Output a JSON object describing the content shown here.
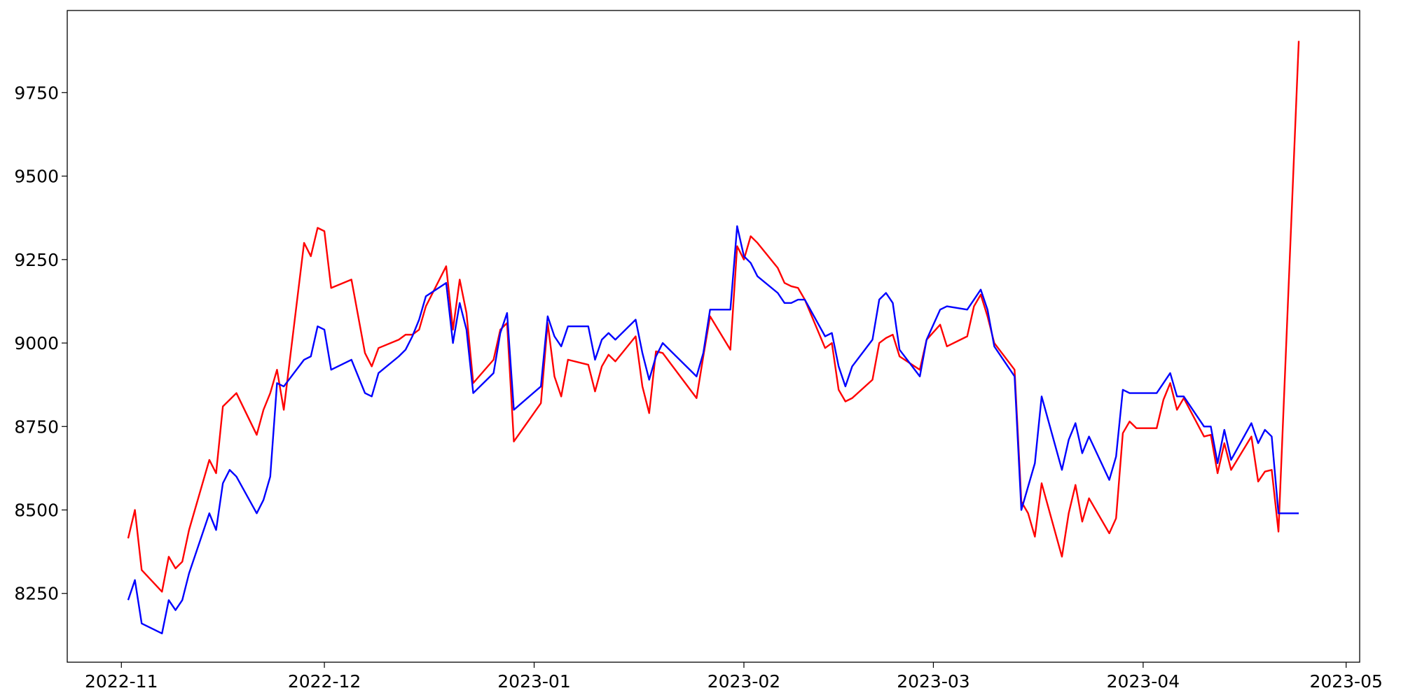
{
  "chart_data": {
    "type": "line",
    "x": [
      "2022-11-02",
      "2022-11-03",
      "2022-11-04",
      "2022-11-07",
      "2022-11-08",
      "2022-11-09",
      "2022-11-10",
      "2022-11-11",
      "2022-11-14",
      "2022-11-15",
      "2022-11-16",
      "2022-11-17",
      "2022-11-18",
      "2022-11-21",
      "2022-11-22",
      "2022-11-23",
      "2022-11-24",
      "2022-11-25",
      "2022-11-28",
      "2022-11-29",
      "2022-11-30",
      "2022-12-01",
      "2022-12-02",
      "2022-12-05",
      "2022-12-07",
      "2022-12-08",
      "2022-12-09",
      "2022-12-12",
      "2022-12-13",
      "2022-12-14",
      "2022-12-15",
      "2022-12-16",
      "2022-12-19",
      "2022-12-20",
      "2022-12-21",
      "2022-12-22",
      "2022-12-23",
      "2022-12-26",
      "2022-12-27",
      "2022-12-28",
      "2022-12-29",
      "2023-01-02",
      "2023-01-03",
      "2023-01-04",
      "2023-01-05",
      "2023-01-06",
      "2023-01-09",
      "2023-01-10",
      "2023-01-11",
      "2023-01-12",
      "2023-01-13",
      "2023-01-16",
      "2023-01-17",
      "2023-01-18",
      "2023-01-19",
      "2023-01-20",
      "2023-01-25",
      "2023-01-26",
      "2023-01-27",
      "2023-01-30",
      "2023-01-31",
      "2023-02-01",
      "2023-02-02",
      "2023-02-03",
      "2023-02-06",
      "2023-02-07",
      "2023-02-08",
      "2023-02-09",
      "2023-02-10",
      "2023-02-13",
      "2023-02-14",
      "2023-02-15",
      "2023-02-16",
      "2023-02-17",
      "2023-02-20",
      "2023-02-21",
      "2023-02-22",
      "2023-02-23",
      "2023-02-24",
      "2023-02-27",
      "2023-02-28",
      "2023-03-02",
      "2023-03-03",
      "2023-03-06",
      "2023-03-07",
      "2023-03-08",
      "2023-03-09",
      "2023-03-10",
      "2023-03-13",
      "2023-03-14",
      "2023-03-15",
      "2023-03-16",
      "2023-03-17",
      "2023-03-20",
      "2023-03-21",
      "2023-03-22",
      "2023-03-23",
      "2023-03-24",
      "2023-03-27",
      "2023-03-28",
      "2023-03-29",
      "2023-03-30",
      "2023-03-31",
      "2023-04-03",
      "2023-04-04",
      "2023-04-05",
      "2023-04-06",
      "2023-04-07",
      "2023-04-10",
      "2023-04-11",
      "2023-04-12",
      "2023-04-13",
      "2023-04-14",
      "2023-04-17",
      "2023-04-18",
      "2023-04-19",
      "2023-04-20",
      "2023-04-21",
      "2023-04-24"
    ],
    "series": [
      {
        "color": "#ff0000",
        "values": [
          8415,
          8500,
          8320,
          8255,
          8360,
          8325,
          8345,
          8440,
          8650,
          8610,
          8810,
          8830,
          8850,
          8725,
          8800,
          8850,
          8920,
          8800,
          9300,
          9260,
          9345,
          9335,
          9165,
          9190,
          8970,
          8930,
          8985,
          9010,
          9025,
          9025,
          9040,
          9110,
          9230,
          9040,
          9190,
          9090,
          8880,
          8950,
          9040,
          9060,
          8705,
          8820,
          9060,
          8900,
          8840,
          8950,
          8935,
          8855,
          8930,
          8965,
          8945,
          9020,
          8870,
          8790,
          8975,
          8970,
          8835,
          8960,
          9080,
          8980,
          9290,
          9250,
          9320,
          9300,
          9225,
          9180,
          9170,
          9165,
          9130,
          8985,
          9000,
          8860,
          8825,
          8835,
          8890,
          9000,
          9015,
          9025,
          8960,
          8920,
          9010,
          9055,
          8990,
          9020,
          9110,
          9145,
          9080,
          9000,
          8920,
          8525,
          8490,
          8420,
          8580,
          8360,
          8490,
          8575,
          8465,
          8535,
          8430,
          8475,
          8730,
          8765,
          8745,
          8745,
          8830,
          8880,
          8800,
          8835,
          8720,
          8725,
          8610,
          8700,
          8620,
          8720,
          8585,
          8615,
          8620,
          8435,
          9905
        ]
      },
      {
        "color": "#0000ff",
        "values": [
          8230,
          8290,
          8160,
          8130,
          8230,
          8200,
          8230,
          8310,
          8490,
          8440,
          8580,
          8620,
          8600,
          8490,
          8530,
          8600,
          8880,
          8870,
          8950,
          8960,
          9050,
          9040,
          8920,
          8950,
          8850,
          8840,
          8910,
          8960,
          8980,
          9020,
          9070,
          9140,
          9180,
          9000,
          9120,
          9040,
          8850,
          8910,
          9030,
          9090,
          8800,
          8870,
          9080,
          9020,
          8990,
          9050,
          9050,
          8950,
          9010,
          9030,
          9010,
          9070,
          8970,
          8890,
          8960,
          9000,
          8900,
          8970,
          9100,
          9100,
          9350,
          9260,
          9240,
          9200,
          9150,
          9120,
          9120,
          9130,
          9130,
          9020,
          9030,
          8930,
          8870,
          8930,
          9010,
          9130,
          9150,
          9120,
          8980,
          8900,
          9010,
          9100,
          9110,
          9100,
          9130,
          9160,
          9100,
          8990,
          8900,
          8500,
          8570,
          8640,
          8840,
          8620,
          8710,
          8760,
          8670,
          8720,
          8590,
          8660,
          8860,
          8850,
          8850,
          8850,
          8880,
          8910,
          8840,
          8840,
          8750,
          8750,
          8640,
          8740,
          8650,
          8760,
          8700,
          8740,
          8720,
          8490,
          8490
        ]
      }
    ],
    "xlim": [
      "2022-10-24",
      "2023-05-03"
    ],
    "xticks": [
      {
        "value": "2022-11-01",
        "label": "2022-11"
      },
      {
        "value": "2022-12-01",
        "label": "2022-12"
      },
      {
        "value": "2023-01-01",
        "label": "2023-01"
      },
      {
        "value": "2023-02-01",
        "label": "2023-02"
      },
      {
        "value": "2023-03-01",
        "label": "2023-03"
      },
      {
        "value": "2023-04-01",
        "label": "2023-04"
      },
      {
        "value": "2023-05-01",
        "label": "2023-05"
      }
    ],
    "ylim": [
      8044,
      9996
    ],
    "yticks": [
      8250,
      8500,
      8750,
      9000,
      9250,
      9500,
      9750
    ]
  }
}
